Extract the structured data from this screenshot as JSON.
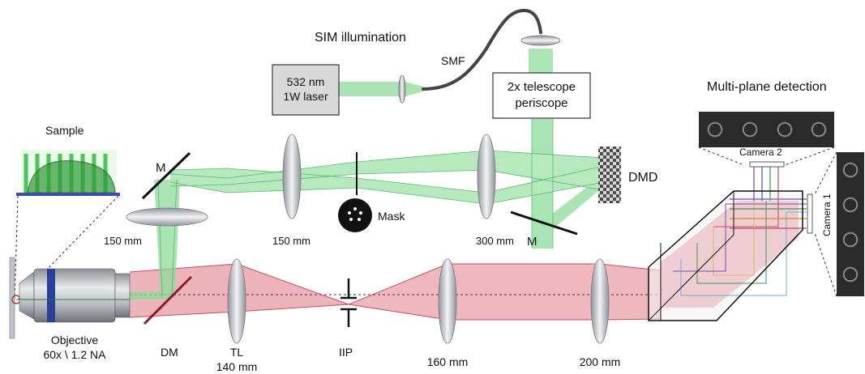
{
  "labels": {
    "sim_illumination": "SIM illumination",
    "laser_line1": "532 nm",
    "laser_line2": "1W laser",
    "smf": "SMF",
    "telescope_line1": "2x telescope",
    "telescope_line2": "periscope",
    "multiplane": "Multi-plane detection",
    "sample": "Sample",
    "m_top": "M",
    "m_bottom": "M",
    "dmd": "DMD",
    "mask": "Mask",
    "f150_left": "150 mm",
    "f150_mid": "150 mm",
    "f300": "300 mm",
    "camera1": "Camera 1",
    "camera2": "Camera 2",
    "objective_line1": "Objective",
    "objective_line2": "60x \\ 1.2 NA",
    "dm": "DM",
    "tl_line1": "TL",
    "tl_line2": "140 mm",
    "iip": "IIP",
    "f160": "160 mm",
    "f200": "200 mm"
  },
  "colors": {
    "green_beam": "#7fd68f",
    "green_edge": "#3cae57",
    "red_beam": "#e79aa3",
    "red_edge": "#c0505c",
    "dm": "#8c1c26",
    "objective_band": "#2a3f9a",
    "lens": "#c9ccd3"
  },
  "icons": [
    "laser-box",
    "lens",
    "mirror",
    "dichroic-mirror",
    "mask-disc",
    "dmd-checkerboard",
    "objective",
    "prism",
    "camera-sensor",
    "fiber"
  ]
}
